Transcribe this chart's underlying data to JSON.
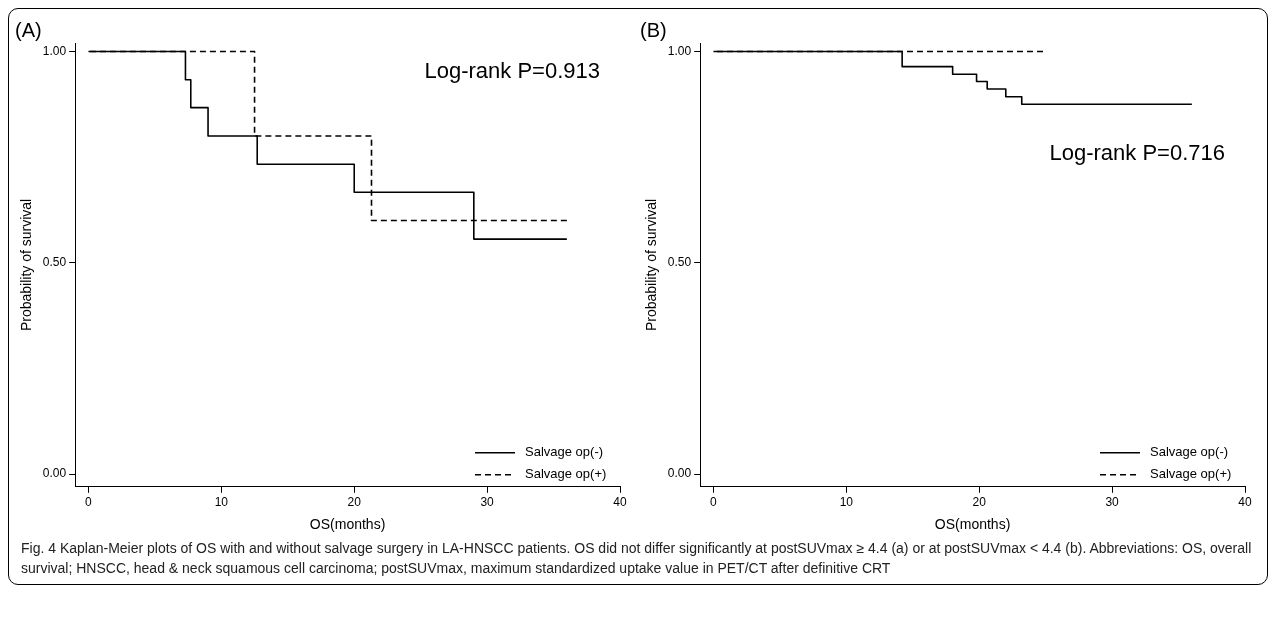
{
  "chart_data": [
    {
      "type": "step",
      "title": "(A)",
      "xlabel": "OS(months)",
      "ylabel": "Probability of survival",
      "xlim": [
        -1,
        40
      ],
      "xticks": [
        0,
        10,
        20,
        30,
        40
      ],
      "ylim": [
        -0.03,
        1.02
      ],
      "yticks": [
        {
          "value": 0,
          "label": "0.00"
        },
        {
          "value": 0.5,
          "label": "0.50"
        },
        {
          "value": 1,
          "label": "1.00"
        }
      ],
      "series": [
        {
          "name": "Salvage op(-)",
          "color": "#000000",
          "line_style": "solid",
          "x": [
            0,
            7.3,
            7.7,
            9,
            12.7,
            20,
            29,
            36
          ],
          "values": [
            1,
            0.933,
            0.867,
            0.8,
            0.733,
            0.667,
            0.556,
            0.556
          ]
        },
        {
          "name": "Salvage op(+)",
          "color": "#000000",
          "line_style": "dashed",
          "x": [
            0,
            12.5,
            21.3,
            36
          ],
          "values": [
            1,
            0.8,
            0.6,
            0.6
          ]
        }
      ],
      "annotations": [
        "Log-rank P=0.913",
        "Fig. 4 Kaplan-Meier plots of OS with and without salvage surgery in LA-HNSCC patients. OS did not differ significantly at postSUVmax ≥ 4.4 (a) or at postSUVmax < 4.4 (b). Abbreviations: OS, overall survival; HNSCC, head & neck squamous cell carcinoma; postSUVmax, maximum standardized uptake value in PET/CT after definitive CRT"
      ],
      "legend": "bottom right",
      "grid": false,
      "marker": "none"
    },
    {
      "type": "step",
      "title": "(B)",
      "xlabel": "OS(months)",
      "ylabel": "Probability of survival",
      "xlim": [
        -1,
        40
      ],
      "xticks": [
        0,
        10,
        20,
        30,
        40
      ],
      "ylim": [
        -0.03,
        1.02
      ],
      "yticks": [
        {
          "value": 0,
          "label": "0.00"
        },
        {
          "value": 0.5,
          "label": "0.50"
        },
        {
          "value": 1,
          "label": "1.00"
        }
      ],
      "series": [
        {
          "name": "Salvage op(-)",
          "color": "#000000",
          "line_style": "solid",
          "x": [
            0,
            14.2,
            18,
            19.8,
            20.6,
            22,
            23.2,
            36
          ],
          "values": [
            1,
            0.964,
            0.946,
            0.929,
            0.911,
            0.893,
            0.875,
            0.875
          ]
        },
        {
          "name": "Salvage op(+)",
          "color": "#000000",
          "line_style": "dashed",
          "x": [
            0,
            24.8
          ],
          "values": [
            1,
            1
          ]
        }
      ],
      "annotations": [
        "Log-rank P=0.716"
      ],
      "legend": "bottom right",
      "grid": false,
      "marker": "none"
    }
  ]
}
